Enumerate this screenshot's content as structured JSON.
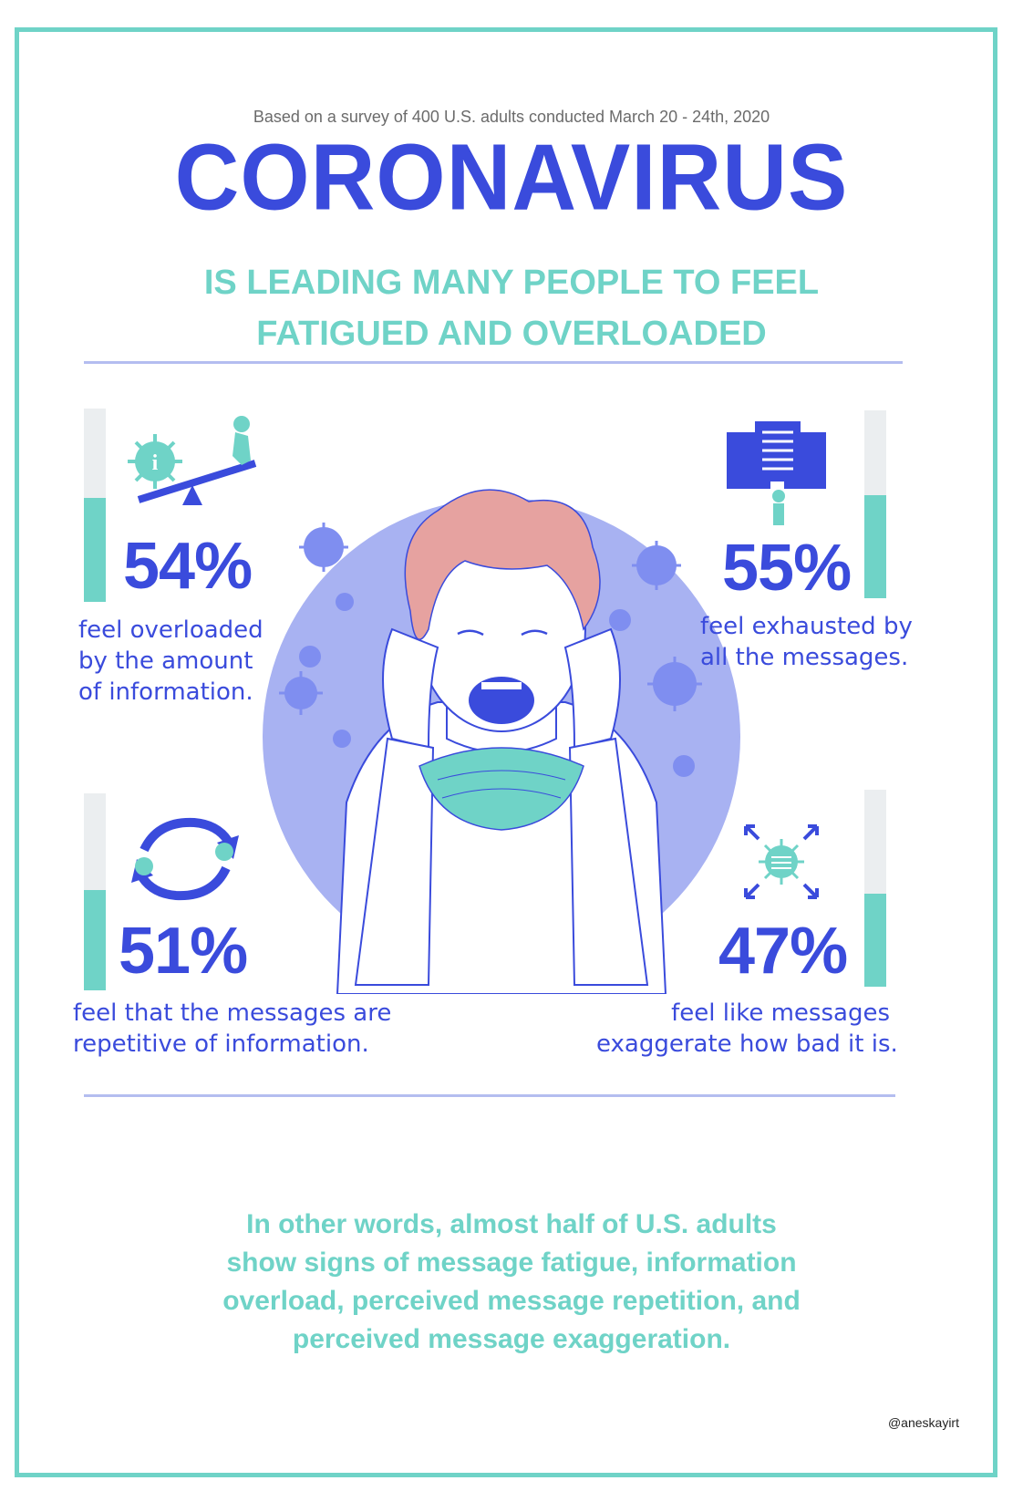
{
  "header": {
    "survey_note": "Based on a survey of 400 U.S. adults conducted March 20 - 24th, 2020",
    "title": "CORONAVIRUS",
    "subtitle_line1": "IS LEADING MANY PEOPLE TO FEEL",
    "subtitle_line2": "FATIGUED AND OVERLOADED"
  },
  "stats": [
    {
      "value": 54,
      "label": "54%",
      "caption": [
        "feel overloaded",
        "by the amount",
        "of information."
      ],
      "icon": "virus-seesaw-icon"
    },
    {
      "value": 55,
      "label": "55%",
      "caption": [
        "feel exhausted by",
        "all the messages."
      ],
      "icon": "documents-person-icon"
    },
    {
      "value": 51,
      "label": "51%",
      "caption": [
        "feel that the messages are",
        "repetitive of information."
      ],
      "icon": "repeat-arrows-virus-icon"
    },
    {
      "value": 47,
      "label": "47%",
      "caption": [
        "feel like messages",
        "exaggerate how bad it is."
      ],
      "icon": "expanding-virus-icon"
    }
  ],
  "closing": {
    "line1": "In other words, almost half of U.S. adults",
    "line2": "show signs of message fatigue, information",
    "line3": "overload, perceived message repetition, and",
    "line4": "perceived message exaggeration."
  },
  "credit": "@aneskayirt",
  "colors": {
    "primary_blue": "#3a4bdc",
    "teal": "#6fd3c7",
    "lavender": "#a8b2f2",
    "hair": "#e6a2a0"
  }
}
